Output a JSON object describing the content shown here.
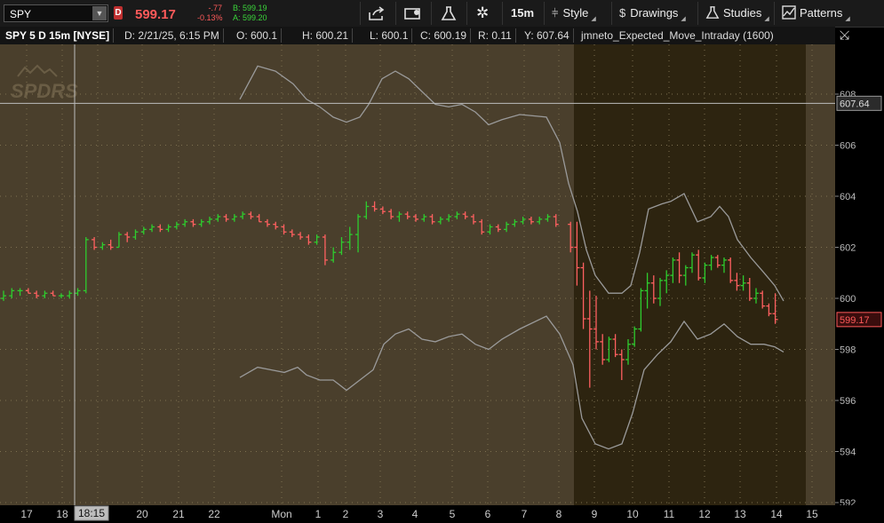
{
  "toolbar": {
    "symbol": "SPY",
    "badge": "D",
    "last_price": "599.17",
    "change": "-.77",
    "change_pct": "-0.13%",
    "bid": "B: 599.19",
    "ask": "A: 599.20",
    "timeframe": "15m",
    "style_label": "Style",
    "drawings_label": "Drawings",
    "studies_label": "Studies",
    "patterns_label": "Patterns"
  },
  "infobar": {
    "title": "SPY 5 D 15m [NYSE]",
    "date": "D: 2/21/25, 6:15 PM",
    "open": "O: 600.1",
    "high": "H: 600.21",
    "low": "L: 600.1",
    "close": "C: 600.19",
    "range": "R: 0.11",
    "y": "Y: 607.64",
    "study": "jmneto_Expected_Move_Intraday (1600)"
  },
  "watermark": "SPDRS",
  "price_axis": {
    "labels": [
      "608",
      "606",
      "604",
      "602",
      "600",
      "598",
      "596",
      "594",
      "592"
    ],
    "crosshair_label": "607.64",
    "last_label": "599.17"
  },
  "time_axis": {
    "labels": [
      "17",
      "18",
      "20",
      "21",
      "22",
      "Mon",
      "1",
      "2",
      "3",
      "4",
      "5",
      "6",
      "7",
      "8",
      "9",
      "10",
      "11",
      "12",
      "13",
      "14",
      "15"
    ],
    "crosshair_label": "18:15"
  },
  "colors": {
    "up": "#2ecc2e",
    "down": "#ff6060",
    "panel_normal": "#4a3f2c",
    "panel_highlight": "#2d2410",
    "band": "#9a9a9a",
    "crosshair": "#bcbcbc",
    "last_badge": "#ff5a5a"
  },
  "chart_data": {
    "type": "candlestick",
    "symbol": "SPY",
    "aggregation": "15m",
    "ylim": [
      592,
      609
    ],
    "y_ticks": [
      592,
      594,
      596,
      598,
      600,
      602,
      604,
      606,
      608
    ],
    "crosshair_price": 607.64,
    "last_price": 599.17,
    "bars": [
      [
        600.0,
        600.3,
        599.9,
        600.1
      ],
      [
        600.1,
        600.4,
        600.0,
        600.3
      ],
      [
        600.3,
        600.4,
        600.1,
        600.3
      ],
      [
        600.3,
        600.4,
        600.2,
        600.2
      ],
      [
        600.2,
        600.3,
        600.0,
        600.1
      ],
      [
        600.1,
        600.3,
        600.0,
        600.2
      ],
      [
        600.2,
        600.3,
        600.1,
        600.1
      ],
      [
        600.1,
        600.2,
        600.0,
        600.1
      ],
      [
        600.1,
        600.3,
        600.0,
        600.2
      ],
      [
        600.2,
        600.4,
        600.1,
        600.3
      ],
      [
        600.3,
        602.4,
        600.2,
        602.3
      ],
      [
        602.3,
        602.4,
        601.9,
        602.0
      ],
      [
        602.0,
        602.2,
        601.9,
        602.1
      ],
      [
        602.1,
        602.3,
        601.9,
        602.0
      ],
      [
        602.0,
        602.6,
        602.0,
        602.5
      ],
      [
        602.5,
        602.6,
        602.2,
        602.4
      ],
      [
        602.4,
        602.7,
        602.3,
        602.6
      ],
      [
        602.6,
        602.8,
        602.5,
        602.7
      ],
      [
        602.7,
        602.9,
        602.6,
        602.8
      ],
      [
        602.8,
        602.9,
        602.6,
        602.7
      ],
      [
        602.7,
        602.9,
        602.6,
        602.8
      ],
      [
        602.8,
        603.0,
        602.7,
        602.9
      ],
      [
        602.9,
        603.1,
        602.8,
        603.0
      ],
      [
        603.0,
        603.1,
        602.8,
        602.9
      ],
      [
        602.9,
        603.1,
        602.8,
        603.0
      ],
      [
        603.0,
        603.2,
        602.9,
        603.1
      ],
      [
        603.1,
        603.3,
        603.0,
        603.2
      ],
      [
        603.2,
        603.3,
        603.0,
        603.1
      ],
      [
        603.1,
        603.3,
        603.0,
        603.2
      ],
      [
        603.2,
        603.4,
        603.1,
        603.3
      ],
      [
        603.3,
        603.4,
        603.1,
        603.2
      ],
      [
        603.2,
        603.3,
        603.0,
        603.0
      ],
      [
        603.0,
        603.1,
        602.8,
        602.9
      ],
      [
        602.9,
        603.0,
        602.7,
        602.8
      ],
      [
        602.8,
        602.9,
        602.5,
        602.6
      ],
      [
        602.6,
        602.7,
        602.4,
        602.5
      ],
      [
        602.5,
        602.6,
        602.3,
        602.4
      ],
      [
        602.4,
        602.5,
        602.1,
        602.2
      ],
      [
        602.2,
        602.5,
        602.1,
        602.4
      ],
      [
        602.4,
        602.5,
        601.3,
        601.5
      ],
      [
        601.5,
        602.0,
        601.4,
        601.8
      ],
      [
        601.8,
        602.4,
        601.7,
        602.2
      ],
      [
        602.2,
        602.8,
        601.9,
        602.5
      ],
      [
        602.5,
        603.3,
        601.8,
        603.2
      ],
      [
        603.2,
        603.8,
        603.1,
        603.6
      ],
      [
        603.6,
        603.8,
        603.4,
        603.5
      ],
      [
        603.5,
        603.6,
        603.3,
        603.4
      ],
      [
        603.4,
        603.5,
        603.1,
        603.2
      ],
      [
        603.2,
        603.4,
        603.0,
        603.3
      ],
      [
        603.3,
        603.4,
        603.1,
        603.2
      ],
      [
        603.2,
        603.3,
        603.0,
        603.1
      ],
      [
        603.1,
        603.3,
        603.0,
        603.2
      ],
      [
        603.2,
        603.3,
        602.9,
        603.0
      ],
      [
        603.0,
        603.2,
        602.9,
        603.1
      ],
      [
        603.1,
        603.3,
        603.0,
        603.2
      ],
      [
        603.2,
        603.4,
        603.1,
        603.3
      ],
      [
        603.3,
        603.4,
        603.1,
        603.2
      ],
      [
        603.2,
        603.3,
        602.9,
        603.0
      ],
      [
        603.0,
        603.1,
        602.5,
        602.6
      ],
      [
        602.6,
        602.9,
        602.5,
        602.8
      ],
      [
        602.8,
        602.9,
        602.6,
        602.7
      ],
      [
        602.7,
        603.0,
        602.6,
        602.9
      ],
      [
        602.9,
        603.1,
        602.8,
        603.0
      ],
      [
        603.0,
        603.2,
        602.9,
        603.1
      ],
      [
        603.1,
        603.2,
        602.9,
        603.0
      ],
      [
        603.0,
        603.2,
        602.9,
        603.1
      ],
      [
        603.1,
        603.3,
        603.0,
        603.2
      ],
      [
        603.2,
        603.3,
        602.8,
        602.9
      ],
      [
        602.9,
        603.0,
        601.8,
        602.0
      ],
      [
        602.0,
        603.0,
        600.5,
        601.2
      ],
      [
        601.2,
        601.4,
        598.8,
        599.2
      ],
      [
        599.2,
        600.3,
        596.5,
        598.8
      ],
      [
        598.8,
        600.1,
        598.0,
        598.3
      ],
      [
        598.3,
        598.6,
        597.4,
        597.6
      ],
      [
        597.6,
        598.5,
        597.5,
        598.4
      ],
      [
        598.4,
        598.6,
        597.7,
        597.8
      ],
      [
        597.8,
        598.0,
        596.8,
        597.6
      ],
      [
        597.6,
        598.4,
        597.4,
        598.2
      ],
      [
        598.2,
        598.9,
        598.1,
        598.8
      ],
      [
        598.8,
        600.4,
        598.7,
        600.3
      ],
      [
        600.3,
        601.0,
        599.6,
        600.6
      ],
      [
        600.6,
        600.9,
        599.8,
        600.0
      ],
      [
        600.0,
        600.8,
        599.7,
        600.7
      ],
      [
        600.7,
        601.1,
        600.2,
        600.9
      ],
      [
        600.9,
        601.6,
        600.6,
        601.5
      ],
      [
        601.5,
        601.8,
        600.6,
        600.9
      ],
      [
        600.9,
        601.3,
        600.5,
        601.2
      ],
      [
        601.2,
        601.8,
        601.0,
        601.7
      ],
      [
        601.7,
        601.9,
        600.7,
        600.8
      ],
      [
        600.8,
        601.4,
        600.6,
        601.3
      ],
      [
        601.3,
        601.7,
        601.1,
        601.6
      ],
      [
        601.6,
        601.7,
        601.2,
        601.3
      ],
      [
        601.3,
        601.6,
        601.0,
        601.5
      ],
      [
        601.5,
        601.6,
        600.6,
        600.7
      ],
      [
        600.7,
        601.0,
        600.3,
        600.5
      ],
      [
        600.5,
        600.9,
        600.3,
        600.6
      ],
      [
        600.6,
        600.8,
        599.9,
        600.0
      ],
      [
        600.0,
        600.4,
        599.8,
        600.2
      ],
      [
        600.2,
        600.3,
        599.6,
        599.7
      ],
      [
        599.7,
        599.8,
        599.3,
        599.4
      ],
      [
        599.4,
        600.2,
        599.0,
        599.17
      ]
    ],
    "expected_move_upper": [
      [
        270,
        607.8
      ],
      [
        290,
        609.1
      ],
      [
        310,
        608.9
      ],
      [
        330,
        608.4
      ],
      [
        345,
        607.8
      ],
      [
        360,
        607.5
      ],
      [
        375,
        607.1
      ],
      [
        390,
        606.9
      ],
      [
        405,
        607.1
      ],
      [
        415,
        607.6
      ],
      [
        430,
        608.6
      ],
      [
        445,
        608.9
      ],
      [
        460,
        608.6
      ],
      [
        475,
        608.1
      ],
      [
        490,
        607.6
      ],
      [
        505,
        607.5
      ],
      [
        520,
        607.6
      ],
      [
        535,
        607.3
      ],
      [
        550,
        606.8
      ],
      [
        565,
        607.0
      ],
      [
        585,
        607.2
      ],
      [
        615,
        607.1
      ],
      [
        630,
        606.1
      ],
      [
        640,
        604.5
      ],
      [
        650,
        603.4
      ],
      [
        660,
        601.9
      ],
      [
        670,
        600.9
      ],
      [
        685,
        600.2
      ],
      [
        700,
        600.2
      ],
      [
        710,
        600.5
      ],
      [
        720,
        601.8
      ],
      [
        730,
        603.5
      ],
      [
        745,
        603.7
      ],
      [
        755,
        603.8
      ],
      [
        770,
        604.1
      ],
      [
        785,
        603.0
      ],
      [
        800,
        603.2
      ],
      [
        810,
        603.6
      ],
      [
        820,
        603.2
      ],
      [
        830,
        602.3
      ],
      [
        845,
        601.6
      ],
      [
        860,
        601.0
      ],
      [
        872,
        600.5
      ],
      [
        882,
        599.9
      ]
    ],
    "expected_move_lower": [
      [
        270,
        596.9
      ],
      [
        290,
        597.3
      ],
      [
        305,
        597.2
      ],
      [
        320,
        597.1
      ],
      [
        335,
        597.3
      ],
      [
        345,
        597.0
      ],
      [
        360,
        596.8
      ],
      [
        375,
        596.8
      ],
      [
        390,
        596.4
      ],
      [
        405,
        596.8
      ],
      [
        420,
        597.2
      ],
      [
        432,
        598.2
      ],
      [
        445,
        598.6
      ],
      [
        460,
        598.8
      ],
      [
        475,
        598.4
      ],
      [
        490,
        598.3
      ],
      [
        505,
        598.5
      ],
      [
        520,
        598.6
      ],
      [
        535,
        598.2
      ],
      [
        550,
        598.0
      ],
      [
        565,
        598.4
      ],
      [
        585,
        598.8
      ],
      [
        615,
        599.3
      ],
      [
        630,
        598.6
      ],
      [
        645,
        597.4
      ],
      [
        655,
        595.3
      ],
      [
        670,
        594.3
      ],
      [
        685,
        594.1
      ],
      [
        700,
        594.3
      ],
      [
        712,
        595.5
      ],
      [
        725,
        597.2
      ],
      [
        740,
        597.8
      ],
      [
        755,
        598.3
      ],
      [
        770,
        599.1
      ],
      [
        785,
        598.4
      ],
      [
        800,
        598.6
      ],
      [
        815,
        599.0
      ],
      [
        830,
        598.5
      ],
      [
        845,
        598.2
      ],
      [
        860,
        598.2
      ],
      [
        872,
        598.1
      ],
      [
        882,
        597.9
      ]
    ]
  }
}
